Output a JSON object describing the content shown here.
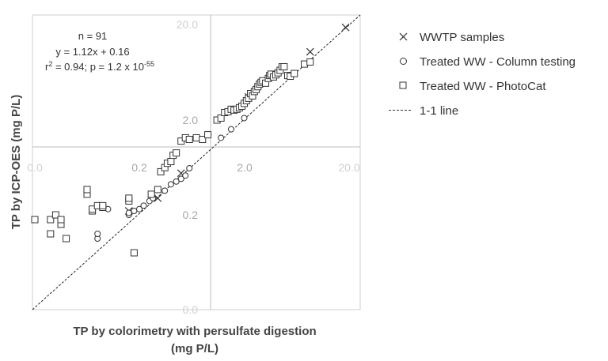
{
  "chart_data": {
    "type": "scatter",
    "title": "",
    "xlabel_line1": "TP by colorimetry with persulfate digestion",
    "xlabel_line2": "(mg P/L)",
    "ylabel": "TP by ICP-OES (mg P/L)",
    "scale": "log-like broken axis (0.0–0.2 linear, 0.2–20.0 log)",
    "x_ticks": [
      "0.0",
      "0.2",
      "2.0",
      "20.0"
    ],
    "y_ticks": [
      "0.0",
      "0.2",
      "2.0",
      "20.0"
    ],
    "grid": false,
    "legend_position": "right",
    "stats": {
      "n": "n = 91",
      "equation": "y = 1.12x + 0.16",
      "r2_prefix": "r",
      "r2_sup": "2",
      "r2_mid": " = 0.94; p = 1.2 x 10",
      "p_exp": "-55"
    },
    "series": [
      {
        "name": "WWTP samples",
        "marker": "x",
        "points": [
          [
            0.18,
            0.22
          ],
          [
            0.3,
            0.3
          ],
          [
            0.5,
            0.55
          ],
          [
            2.2,
            3.5
          ],
          [
            8.5,
            10.5
          ],
          [
            18.5,
            19.0
          ]
        ]
      },
      {
        "name": "Treated WW - Column testing",
        "marker": "circle",
        "points": [
          [
            0.12,
            0.15
          ],
          [
            0.12,
            0.16
          ],
          [
            0.14,
            0.23
          ],
          [
            0.18,
            0.2
          ],
          [
            0.18,
            0.21
          ],
          [
            0.19,
            0.22
          ],
          [
            0.2,
            0.23
          ],
          [
            0.22,
            0.25
          ],
          [
            0.25,
            0.28
          ],
          [
            0.27,
            0.3
          ],
          [
            0.35,
            0.36
          ],
          [
            0.4,
            0.42
          ],
          [
            0.45,
            0.45
          ],
          [
            0.5,
            0.48
          ],
          [
            0.55,
            0.52
          ],
          [
            0.6,
            0.62
          ],
          [
            1.2,
            1.3
          ],
          [
            1.5,
            1.6
          ],
          [
            2.0,
            2.1
          ]
        ]
      },
      {
        "name": "Treated WW - PhotoCat",
        "marker": "square",
        "points": [
          [
            0.0,
            0.19
          ],
          [
            0.03,
            0.16
          ],
          [
            0.03,
            0.19
          ],
          [
            0.04,
            0.2
          ],
          [
            0.05,
            0.18
          ],
          [
            0.05,
            0.19
          ],
          [
            0.06,
            0.15
          ],
          [
            0.1,
            0.33
          ],
          [
            0.1,
            0.37
          ],
          [
            0.11,
            0.22
          ],
          [
            0.11,
            0.23
          ],
          [
            0.12,
            0.25
          ],
          [
            0.13,
            0.24
          ],
          [
            0.13,
            0.25
          ],
          [
            0.18,
            0.28
          ],
          [
            0.18,
            0.3
          ],
          [
            0.19,
            0.12
          ],
          [
            0.26,
            0.33
          ],
          [
            0.3,
            0.37
          ],
          [
            0.32,
            0.57
          ],
          [
            0.35,
            0.63
          ],
          [
            0.37,
            0.7
          ],
          [
            0.4,
            0.73
          ],
          [
            0.42,
            0.85
          ],
          [
            0.45,
            0.9
          ],
          [
            0.5,
            1.2
          ],
          [
            0.55,
            1.3
          ],
          [
            0.6,
            1.25
          ],
          [
            0.7,
            1.3
          ],
          [
            0.8,
            1.25
          ],
          [
            0.9,
            1.4
          ],
          [
            1.1,
            2.0
          ],
          [
            1.2,
            2.1
          ],
          [
            1.3,
            2.4
          ],
          [
            1.4,
            2.45
          ],
          [
            1.5,
            2.6
          ],
          [
            1.6,
            2.55
          ],
          [
            1.7,
            2.6
          ],
          [
            1.8,
            2.7
          ],
          [
            1.9,
            2.8
          ],
          [
            2.0,
            3.0
          ],
          [
            2.1,
            3.2
          ],
          [
            2.2,
            3.4
          ],
          [
            2.3,
            3.8
          ],
          [
            2.4,
            3.6
          ],
          [
            2.5,
            4.0
          ],
          [
            2.6,
            4.2
          ],
          [
            2.7,
            4.5
          ],
          [
            2.8,
            4.8
          ],
          [
            2.9,
            5.0
          ],
          [
            3.0,
            5.2
          ],
          [
            3.2,
            4.9
          ],
          [
            3.4,
            5.5
          ],
          [
            3.5,
            5.9
          ],
          [
            3.6,
            6.1
          ],
          [
            3.8,
            5.7
          ],
          [
            4.0,
            6.0
          ],
          [
            4.2,
            6.3
          ],
          [
            4.4,
            6.7
          ],
          [
            4.6,
            7.3
          ],
          [
            4.8,
            7.3
          ],
          [
            5.2,
            5.9
          ],
          [
            5.5,
            5.8
          ],
          [
            6.0,
            6.2
          ],
          [
            7.5,
            7.8
          ],
          [
            8.5,
            8.2
          ]
        ]
      },
      {
        "name": "1-1 line",
        "marker": "dashed-line",
        "points": []
      }
    ]
  }
}
